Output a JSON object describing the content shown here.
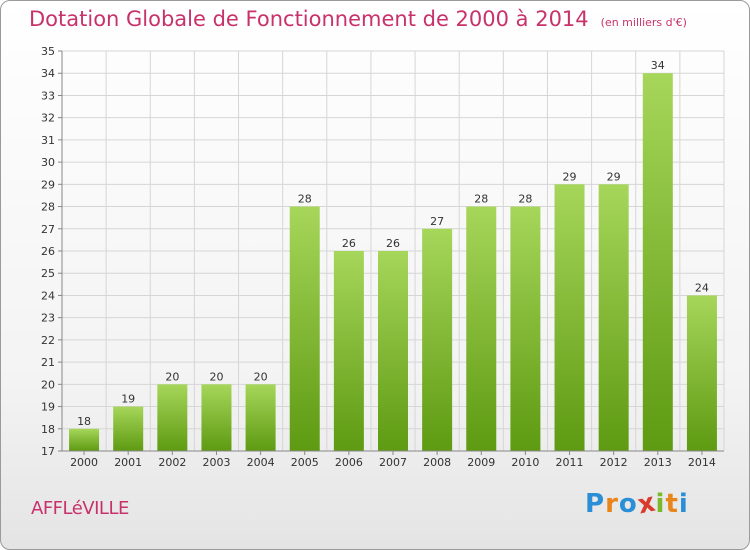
{
  "header": {
    "title": "Dotation Globale de Fonctionnement de 2000 à 2014",
    "unit": "(en milliers d'€)"
  },
  "commune": "AFFLéVILLE",
  "brand": {
    "letters": [
      "P",
      "r",
      "o",
      "x",
      "i",
      "t",
      "i"
    ],
    "colors": [
      "#2a8fd6",
      "#e8861c",
      "#2a8fd6",
      "#d93a2b",
      "#7ab929",
      "#e8861c",
      "#2a8fd6"
    ]
  },
  "colors": {
    "bar_top": "#a6d65a",
    "bar_bottom": "#5e9a12",
    "grid": "#d6d6d6",
    "axis": "#888888"
  },
  "chart_data": {
    "type": "bar",
    "title": "Dotation Globale de Fonctionnement de 2000 à 2014",
    "categories": [
      "2000",
      "2001",
      "2002",
      "2003",
      "2004",
      "2005",
      "2006",
      "2007",
      "2008",
      "2009",
      "2010",
      "2011",
      "2012",
      "2013",
      "2014"
    ],
    "values": [
      18,
      19,
      20,
      20,
      20,
      28,
      26,
      26,
      27,
      28,
      28,
      29,
      29,
      34,
      24
    ],
    "ylim": [
      17,
      35
    ],
    "yticks": [
      17,
      18,
      19,
      20,
      21,
      22,
      23,
      24,
      25,
      26,
      27,
      28,
      29,
      30,
      31,
      32,
      33,
      34,
      35
    ],
    "grid": true,
    "data_labels": true
  }
}
